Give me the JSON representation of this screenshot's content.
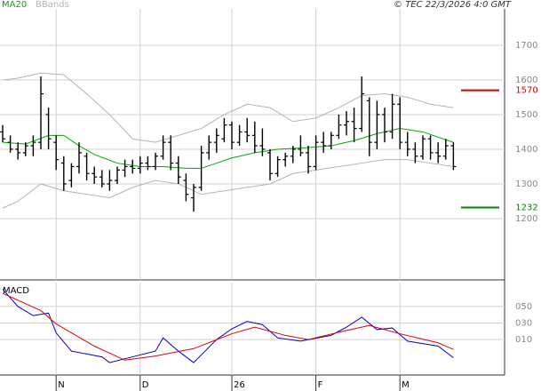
{
  "header": {
    "legend": [
      "MA20",
      "BBands"
    ],
    "credit": "© TEC 22/3/2026 4:0 GMT"
  },
  "chart_data": [
    {
      "type": "ohlc",
      "xlim": [
        0,
        65.7
      ],
      "xticks": [
        {
          "value": 7,
          "label": "N"
        },
        {
          "value": 18,
          "label": "D"
        },
        {
          "value": 30,
          "label": "26"
        },
        {
          "value": 41,
          "label": "F"
        },
        {
          "value": 52,
          "label": "M"
        }
      ],
      "ylim": [
        1023,
        1805
      ],
      "yticks": [
        1200,
        1300,
        1400,
        1500,
        1600,
        1700
      ],
      "grid": true,
      "color": "#000000",
      "x": [
        0,
        1,
        2,
        3,
        4,
        5,
        6,
        7,
        8,
        9,
        10,
        11,
        12,
        13,
        14,
        15,
        16,
        17,
        18,
        19,
        20,
        21,
        22,
        23,
        24,
        25,
        26,
        27,
        28,
        29,
        30,
        31,
        32,
        33,
        34,
        35,
        36,
        37,
        38,
        39,
        40,
        41,
        42,
        43,
        44,
        45,
        46,
        47,
        48,
        49,
        50,
        51,
        52,
        53,
        54,
        55,
        56,
        57,
        58,
        59
      ],
      "open": [
        1450,
        1420,
        1400,
        1390,
        1410,
        1420,
        1500,
        1420,
        1360,
        1310,
        1350,
        1380,
        1330,
        1320,
        1300,
        1310,
        1340,
        1350,
        1345,
        1360,
        1350,
        1380,
        1420,
        1360,
        1310,
        1260,
        1290,
        1390,
        1420,
        1430,
        1470,
        1420,
        1450,
        1440,
        1410,
        1390,
        1330,
        1370,
        1380,
        1400,
        1390,
        1350,
        1420,
        1410,
        1440,
        1470,
        1480,
        1460,
        1540,
        1420,
        1500,
        1450,
        1530,
        1420,
        1400,
        1380,
        1430,
        1390,
        1380,
        1410
      ],
      "high": [
        1470,
        1440,
        1420,
        1420,
        1440,
        1610,
        1520,
        1440,
        1380,
        1360,
        1420,
        1390,
        1350,
        1340,
        1340,
        1350,
        1370,
        1370,
        1380,
        1380,
        1390,
        1440,
        1440,
        1380,
        1330,
        1300,
        1410,
        1440,
        1460,
        1490,
        1480,
        1470,
        1490,
        1480,
        1460,
        1400,
        1380,
        1390,
        1410,
        1440,
        1410,
        1440,
        1450,
        1450,
        1500,
        1510,
        1520,
        1610,
        1550,
        1540,
        1520,
        1560,
        1550,
        1450,
        1420,
        1440,
        1440,
        1420,
        1430,
        1420
      ],
      "low": [
        1420,
        1390,
        1370,
        1380,
        1380,
        1400,
        1400,
        1340,
        1280,
        1290,
        1330,
        1310,
        1300,
        1290,
        1280,
        1300,
        1320,
        1330,
        1330,
        1340,
        1340,
        1370,
        1340,
        1300,
        1250,
        1220,
        1280,
        1370,
        1390,
        1420,
        1400,
        1410,
        1420,
        1390,
        1380,
        1310,
        1320,
        1350,
        1360,
        1380,
        1330,
        1340,
        1390,
        1400,
        1430,
        1440,
        1420,
        1450,
        1380,
        1400,
        1420,
        1430,
        1400,
        1380,
        1360,
        1370,
        1370,
        1360,
        1370,
        1340
      ],
      "close": [
        1430,
        1400,
        1390,
        1410,
        1420,
        1560,
        1430,
        1370,
        1300,
        1350,
        1390,
        1330,
        1320,
        1300,
        1310,
        1340,
        1350,
        1345,
        1360,
        1350,
        1380,
        1420,
        1360,
        1320,
        1270,
        1290,
        1390,
        1420,
        1440,
        1470,
        1420,
        1450,
        1440,
        1410,
        1400,
        1330,
        1370,
        1380,
        1400,
        1390,
        1350,
        1420,
        1410,
        1440,
        1470,
        1480,
        1460,
        1560,
        1420,
        1500,
        1450,
        1530,
        1420,
        1400,
        1380,
        1430,
        1390,
        1380,
        1410,
        1350
      ],
      "overlays": [
        {
          "name": "MA20",
          "color": "#00aa00",
          "x": [
            0,
            3,
            6,
            8,
            10,
            12,
            15,
            18,
            21,
            24,
            26,
            28,
            30,
            33,
            36,
            40,
            43,
            46,
            49,
            52,
            55,
            59
          ],
          "values": [
            1420,
            1415,
            1440,
            1440,
            1410,
            1385,
            1360,
            1350,
            1350,
            1345,
            1345,
            1360,
            1375,
            1390,
            1400,
            1405,
            1410,
            1425,
            1445,
            1460,
            1450,
            1420
          ]
        },
        {
          "name": "BBands",
          "color": "#b4b4b4",
          "x": [
            0,
            2,
            5,
            8,
            11,
            14,
            17,
            20,
            23,
            26,
            29,
            32,
            35,
            38,
            41,
            44,
            47,
            50,
            53,
            56,
            59
          ],
          "upper": [
            1600,
            1605,
            1620,
            1615,
            1560,
            1500,
            1430,
            1420,
            1440,
            1460,
            1500,
            1530,
            1520,
            1480,
            1490,
            1520,
            1555,
            1560,
            1550,
            1530,
            1520
          ],
          "lower": [
            1230,
            1250,
            1300,
            1280,
            1270,
            1260,
            1290,
            1310,
            1300,
            1270,
            1280,
            1290,
            1300,
            1330,
            1340,
            1350,
            1360,
            1370,
            1370,
            1360,
            1350
          ]
        }
      ],
      "levels": [
        {
          "value": 1570,
          "color": "#cc0000"
        },
        {
          "value": 1232,
          "color": "#008800"
        }
      ]
    },
    {
      "type": "line",
      "title": "MACD",
      "xlim": [
        0,
        65.7
      ],
      "ylim": [
        -33,
        79
      ],
      "yticks": [
        {
          "value": 50,
          "label": "050"
        },
        {
          "value": 30,
          "label": "030"
        },
        {
          "value": 10,
          "label": "010"
        }
      ],
      "grid": true,
      "series": [
        {
          "color": "#0000cc",
          "x": [
            0,
            2,
            4,
            6,
            7,
            9,
            13,
            14,
            17,
            20,
            21,
            23,
            25,
            28,
            30,
            32,
            34,
            36,
            39,
            43,
            45,
            47,
            49,
            51,
            53,
            57,
            59
          ],
          "values": [
            71,
            50,
            39,
            42,
            18,
            -4,
            -11,
            -18,
            -11,
            -4,
            12,
            -4,
            -18,
            10,
            23,
            32,
            28,
            12,
            8,
            15,
            25,
            37,
            22,
            24,
            8,
            2,
            -12
          ]
        },
        {
          "color": "#dd0000",
          "x": [
            0,
            5,
            7,
            12,
            16,
            20,
            25,
            30,
            33,
            37,
            40,
            45,
            48,
            52,
            57,
            59
          ],
          "values": [
            66,
            45,
            29,
            2,
            -15,
            -10,
            -1,
            17,
            25,
            15,
            10,
            21,
            27,
            17,
            6,
            -2
          ]
        }
      ]
    }
  ]
}
